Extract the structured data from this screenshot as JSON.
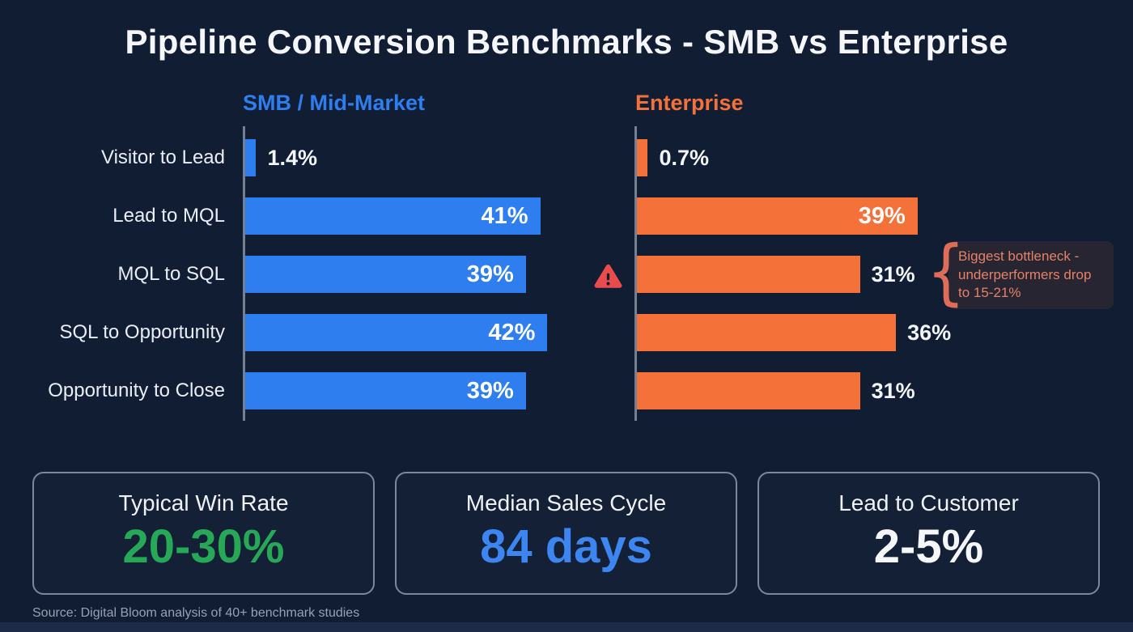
{
  "title": "Pipeline Conversion Benchmarks - SMB vs Enterprise",
  "chart_data": {
    "type": "bar",
    "orientation": "horizontal",
    "categories": [
      "Visitor to Lead",
      "Lead to MQL",
      "MQL to SQL",
      "SQL to Opportunity",
      "Opportunity to Close"
    ],
    "series": [
      {
        "name": "SMB / Mid-Market",
        "color": "#2e7ef0",
        "values": [
          1.4,
          41,
          39,
          42,
          39
        ],
        "labels": [
          "1.4%",
          "41%",
          "39%",
          "42%",
          "39%"
        ],
        "labels_inside": [
          false,
          true,
          true,
          true,
          true
        ]
      },
      {
        "name": "Enterprise",
        "color": "#f4713a",
        "values": [
          0.7,
          39,
          31,
          36,
          31
        ],
        "labels": [
          "0.7%",
          "39%",
          "31%",
          "36%",
          "31%"
        ],
        "labels_inside": [
          false,
          true,
          false,
          false,
          false
        ]
      }
    ],
    "xlim": [
      0,
      46
    ],
    "grid": false,
    "legend_position": "column-headers",
    "annotation": {
      "target_category": "MQL to SQL",
      "text": "Biggest bottleneck - underperformers drop to 15-21%"
    }
  },
  "annotation_lines": [
    "Biggest bottleneck -",
    "underperformers drop",
    "to 15-21%"
  ],
  "warning": {
    "icon": "warning-triangle-icon",
    "color": "#e84c4c"
  },
  "stats": [
    {
      "label": "Typical Win Rate",
      "value": "20-30%",
      "color": "#27a857"
    },
    {
      "label": "Median Sales Cycle",
      "value": "84 days",
      "color": "#3d85f0"
    },
    {
      "label": "Lead to Customer",
      "value": "2-5%",
      "color": "#f5f7fa"
    }
  ],
  "source": "Source: Digital Bloom analysis of 40+ benchmark studies"
}
